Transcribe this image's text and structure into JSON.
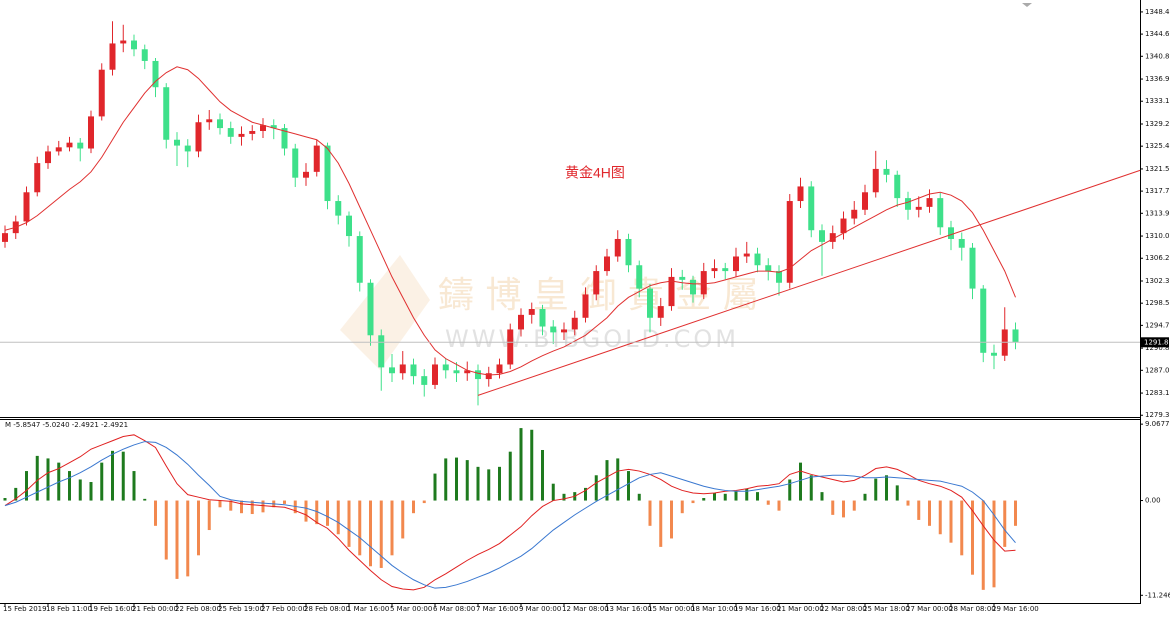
{
  "chart_data": {
    "type": "candlestick",
    "annotation": "黄金4H图",
    "watermark": {
      "title": "鑄 博 皇 御 貴 金 屬",
      "url": "WWW.BIBGOLD.COM"
    },
    "categories": [
      "15 Feb 2019",
      null,
      null,
      null,
      "18 Feb 11:00",
      null,
      null,
      null,
      "19 Feb 16:00",
      null,
      null,
      null,
      "21 Feb 00:00",
      null,
      null,
      null,
      "22 Feb 08:00",
      null,
      null,
      null,
      "25 Feb 19:00",
      null,
      null,
      null,
      "27 Feb 00:00",
      null,
      null,
      null,
      "28 Feb 08:00",
      null,
      null,
      null,
      "1 Mar 16:00",
      null,
      null,
      null,
      "5 Mar 00:00",
      null,
      null,
      null,
      "6 Mar 08:00",
      null,
      null,
      null,
      "7 Mar 16:00",
      null,
      null,
      null,
      "9 Mar 00:00",
      null,
      null,
      null,
      "12 Mar 08:00",
      null,
      null,
      null,
      "13 Mar 16:00",
      null,
      null,
      null,
      "15 Mar 00:00",
      null,
      null,
      null,
      "18 Mar 10:00",
      null,
      null,
      null,
      "19 Mar 16:00",
      null,
      null,
      null,
      "21 Mar 00:00",
      null,
      null,
      null,
      "22 Mar 08:00",
      null,
      null,
      null,
      "25 Mar 18:00",
      null,
      null,
      null,
      "27 Mar 00:00",
      null,
      null,
      null,
      "28 Mar 08:00",
      null,
      null,
      null,
      "29 Mar 16:00",
      null,
      null
    ],
    "open": [
      1309.0,
      1310.5,
      1312.5,
      1317.5,
      1322.5,
      1324.5,
      1325.2,
      1326.0,
      1325.0,
      1330.5,
      1338.5,
      1343.0,
      1343.5,
      1342.0,
      1340.0,
      1335.5,
      1326.5,
      1325.5,
      1324.5,
      1329.5,
      1330.0,
      1328.5,
      1327.0,
      1327.5,
      1328.0,
      1329.0,
      1328.5,
      1325.0,
      1320.0,
      1321.0,
      1325.5,
      1316.0,
      1313.5,
      1310.0,
      1302.0,
      1293.0,
      1287.5,
      1286.5,
      1288.0,
      1286.0,
      1284.5,
      1288.0,
      1287.0,
      1286.5,
      1287.0,
      1285.5,
      1286.5,
      1288.0,
      1294.0,
      1296.5,
      1297.5,
      1294.5,
      1293.5,
      1294.0,
      1296.0,
      1300.0,
      1304.0,
      1306.5,
      1309.5,
      1305.0,
      1301.0,
      1296.0,
      1298.0,
      1303.0,
      1302.5,
      1300.0,
      1304.0,
      1304.5,
      1304.0,
      1306.5,
      1307.0,
      1305.0,
      1304.0,
      1302.0,
      1316.0,
      1318.5,
      1311.0,
      1309.0,
      1310.5,
      1313.0,
      1314.5,
      1317.5,
      1321.5,
      1320.5,
      1316.5,
      1314.5,
      1315.0,
      1316.5,
      1311.5,
      1309.5,
      1308.0,
      1301.0,
      1290.0,
      1289.5,
      1294.0
    ],
    "high": [
      1311.8,
      1313.5,
      1318.5,
      1323.6,
      1325.5,
      1326.3,
      1327.0,
      1326.8,
      1331.5,
      1339.6,
      1346.8,
      1346.2,
      1344.5,
      1342.8,
      1340.5,
      1336.2,
      1327.8,
      1326.6,
      1330.8,
      1331.6,
      1331.0,
      1329.6,
      1328.8,
      1329.0,
      1330.2,
      1330.0,
      1329.2,
      1325.8,
      1322.5,
      1326.5,
      1326.0,
      1317.0,
      1314.2,
      1310.8,
      1302.6,
      1294.0,
      1289.8,
      1290.3,
      1289.0,
      1287.2,
      1289.2,
      1289.0,
      1288.4,
      1288.5,
      1288.0,
      1287.6,
      1289.0,
      1295.0,
      1297.6,
      1298.6,
      1298.2,
      1295.6,
      1295.2,
      1297.2,
      1301.2,
      1305.0,
      1307.8,
      1311.0,
      1310.4,
      1305.8,
      1301.8,
      1299.4,
      1304.5,
      1304.2,
      1303.2,
      1305.4,
      1306.0,
      1305.4,
      1308.0,
      1309.0,
      1308.0,
      1306.2,
      1305.0,
      1317.2,
      1320.0,
      1319.4,
      1312.0,
      1311.8,
      1314.2,
      1316.0,
      1318.8,
      1324.6,
      1323.0,
      1321.2,
      1317.6,
      1316.8,
      1318.0,
      1317.4,
      1312.6,
      1310.6,
      1308.8,
      1301.6,
      1291.4,
      1297.8,
      1295.2
    ],
    "low": [
      1308.0,
      1309.5,
      1311.8,
      1316.8,
      1321.5,
      1323.8,
      1324.5,
      1322.8,
      1324.2,
      1329.8,
      1337.5,
      1341.5,
      1340.8,
      1338.6,
      1333.8,
      1325.0,
      1322.0,
      1321.8,
      1323.5,
      1328.2,
      1327.4,
      1325.8,
      1325.5,
      1326.4,
      1326.8,
      1326.6,
      1323.8,
      1318.4,
      1318.6,
      1320.2,
      1314.6,
      1312.0,
      1308.2,
      1300.5,
      1291.2,
      1283.5,
      1285.0,
      1285.4,
      1284.6,
      1282.5,
      1283.8,
      1285.6,
      1285.0,
      1285.2,
      1281.0,
      1284.2,
      1285.6,
      1287.2,
      1292.8,
      1295.0,
      1293.0,
      1291.5,
      1292.2,
      1293.0,
      1295.2,
      1299.0,
      1303.2,
      1305.6,
      1303.8,
      1299.5,
      1293.5,
      1294.6,
      1297.2,
      1300.8,
      1298.6,
      1299.2,
      1302.8,
      1302.6,
      1303.0,
      1305.4,
      1303.8,
      1302.4,
      1299.8,
      1301.0,
      1314.8,
      1309.8,
      1303.2,
      1307.8,
      1309.4,
      1312.0,
      1313.6,
      1316.6,
      1319.2,
      1315.0,
      1312.8,
      1313.2,
      1314.0,
      1310.2,
      1307.6,
      1305.8,
      1299.2,
      1288.4,
      1287.2,
      1288.6,
      1290.6
    ],
    "close": [
      1310.5,
      1312.5,
      1317.5,
      1322.5,
      1324.5,
      1325.2,
      1326.0,
      1325.0,
      1330.5,
      1338.5,
      1343.0,
      1343.5,
      1342.0,
      1340.0,
      1335.5,
      1326.5,
      1325.5,
      1324.5,
      1329.5,
      1330.0,
      1328.5,
      1327.0,
      1327.5,
      1328.0,
      1329.0,
      1328.5,
      1325.0,
      1320.0,
      1321.0,
      1325.5,
      1316.0,
      1313.5,
      1310.0,
      1302.0,
      1293.0,
      1287.5,
      1286.5,
      1288.0,
      1286.0,
      1284.5,
      1288.0,
      1287.0,
      1286.5,
      1287.0,
      1285.5,
      1286.5,
      1288.0,
      1294.0,
      1296.5,
      1297.5,
      1294.5,
      1293.5,
      1294.0,
      1296.0,
      1300.0,
      1304.0,
      1306.5,
      1309.5,
      1305.0,
      1301.0,
      1296.0,
      1298.0,
      1303.0,
      1302.5,
      1300.0,
      1304.0,
      1304.5,
      1304.0,
      1306.5,
      1307.0,
      1305.0,
      1304.0,
      1302.0,
      1316.0,
      1318.5,
      1311.0,
      1309.0,
      1310.5,
      1313.0,
      1314.5,
      1317.5,
      1321.5,
      1320.5,
      1316.5,
      1314.5,
      1315.0,
      1316.5,
      1311.5,
      1309.5,
      1308.0,
      1301.0,
      1290.0,
      1289.5,
      1294.0,
      1291.8
    ],
    "up_color": "#e0262b",
    "down_color": "#3ee08a",
    "ma": {
      "color": "#e03030",
      "values": [
        1311.0,
        1311.5,
        1312.3,
        1313.5,
        1315,
        1316.5,
        1318,
        1319.3,
        1321,
        1323.5,
        1326.5,
        1329.5,
        1332,
        1334.5,
        1336.5,
        1338,
        1339,
        1338.5,
        1337,
        1335,
        1333,
        1331.5,
        1330.5,
        1329.5,
        1329,
        1328.5,
        1328,
        1327.5,
        1327,
        1326.5,
        1325,
        1322.5,
        1319,
        1315,
        1311,
        1307,
        1303,
        1299.5,
        1296,
        1293,
        1290.5,
        1289,
        1288,
        1287,
        1286.5,
        1286.2,
        1286.3,
        1286.8,
        1287.6,
        1288.6,
        1289.5,
        1290.3,
        1291,
        1292,
        1293,
        1294.5,
        1296,
        1298,
        1299.5,
        1300.5,
        1301.5,
        1302,
        1302.3,
        1302,
        1301.8,
        1301.8,
        1302,
        1302.5,
        1303,
        1303.5,
        1304,
        1304,
        1303.8,
        1304.5,
        1306,
        1307.5,
        1308.5,
        1309.5,
        1310.5,
        1311.5,
        1312.5,
        1313.5,
        1314.5,
        1315.3,
        1315.8,
        1316.5,
        1317.2,
        1317.5,
        1317,
        1316,
        1314,
        1311,
        1307.5,
        1304,
        1299.5
      ]
    },
    "trendline": {
      "color": "#e03030",
      "bars": [
        44,
        94
      ],
      "prices": [
        1282.7,
        1314.0
      ]
    },
    "last_price": {
      "value": 1291.8,
      "label": "1291.80"
    },
    "ylim": [
      1279.0,
      1350.1
    ],
    "yticks": [
      {
        "value": 1348.4,
        "label": "1348.40"
      },
      {
        "value": 1344.6,
        "label": "1344.60"
      },
      {
        "value": 1340.8,
        "label": "1340.80"
      },
      {
        "value": 1336.9,
        "label": "1336.90"
      },
      {
        "value": 1333.1,
        "label": "1333.10"
      },
      {
        "value": 1329.2,
        "label": "1329.20"
      },
      {
        "value": 1325.4,
        "label": "1325.40"
      },
      {
        "value": 1321.5,
        "label": "1321.50"
      },
      {
        "value": 1317.7,
        "label": "1317.70"
      },
      {
        "value": 1313.9,
        "label": "1313.90"
      },
      {
        "value": 1310,
        "label": "1310.00"
      },
      {
        "value": 1306.2,
        "label": "1306.20"
      },
      {
        "value": 1302.3,
        "label": "1302.30"
      },
      {
        "value": 1298.5,
        "label": "1298.50"
      },
      {
        "value": 1294.7,
        "label": "1294.70"
      },
      {
        "value": 1290.8,
        "label": "1290.80"
      },
      {
        "value": 1287,
        "label": "1287.00"
      },
      {
        "value": 1283.1,
        "label": "1283.10"
      },
      {
        "value": 1279.3,
        "label": "1279.30"
      }
    ],
    "indicator": {
      "type": "macd",
      "label": "M -5.8547 -5.0240 -2.4921 -2.4921",
      "histogram": {
        "up_color": "#1e7a1e",
        "down_color": "#f2884e",
        "values": [
          0.3,
          1.5,
          3.5,
          5.3,
          5.0,
          4.5,
          3.5,
          2.5,
          2.2,
          4.5,
          5.9,
          5.8,
          3.5,
          0.2,
          -3.0,
          -7.0,
          -9.3,
          -9.0,
          -6.5,
          -3.5,
          -0.8,
          -1.2,
          -1.5,
          -1.6,
          -1.4,
          -0.8,
          -0.4,
          -1.5,
          -2.5,
          -2.8,
          -3.0,
          -4.0,
          -5.5,
          -6.5,
          -7.8,
          -8.0,
          -6.5,
          -4.5,
          -1.5,
          -0.3,
          3.2,
          5.0,
          5.1,
          4.8,
          4.0,
          3.7,
          4.0,
          5.8,
          8.6,
          8.4,
          6.0,
          2.0,
          0.8,
          1.0,
          1.5,
          3.0,
          4.8,
          5.0,
          3.5,
          0.8,
          -3.0,
          -5.5,
          -4.5,
          -1.5,
          -0.3,
          0.3,
          0.9,
          0.8,
          1.1,
          1.4,
          1.0,
          -0.5,
          -1.2,
          2.5,
          4.5,
          3.0,
          1.0,
          -1.7,
          -2.0,
          -1.2,
          0.8,
          2.6,
          3.0,
          1.8,
          -0.6,
          -2.3,
          -3.0,
          -4.0,
          -5.0,
          -6.5,
          -8.8,
          -10.6,
          -10.3,
          -5.5,
          -3.0
        ]
      },
      "series": [
        {
          "color": "#e02020",
          "values": [
            -0.6,
            0.2,
            1.2,
            2.4,
            3.3,
            3.8,
            4.5,
            5.2,
            6.1,
            6.6,
            7.1,
            7.6,
            7.8,
            7.1,
            6.3,
            4.1,
            2.0,
            0.7,
            0.4,
            0.1,
            0,
            -0.1,
            -0.4,
            -0.5,
            -0.6,
            -0.7,
            -0.8,
            -1.2,
            -1.7,
            -2.6,
            -3.3,
            -4.5,
            -5.9,
            -7.1,
            -8.3,
            -9.4,
            -10.2,
            -10.5,
            -10.6,
            -10.3,
            -9.4,
            -8.7,
            -7.9,
            -7.1,
            -6.4,
            -5.8,
            -5.1,
            -4.1,
            -3.1,
            -1.8,
            -0.7,
            0,
            0.2,
            0.5,
            1.2,
            2.1,
            2.8,
            3.5,
            3.7,
            3.5,
            3.1,
            2.5,
            1.7,
            1.2,
            0.9,
            0.8,
            0.9,
            1.1,
            1.2,
            1.4,
            1.7,
            1.8,
            2.0,
            3.1,
            3.5,
            3.1,
            2.8,
            2.5,
            2.2,
            2.4,
            3.0,
            3.8,
            4.0,
            3.7,
            3.1,
            2.4,
            2.0,
            1.7,
            1.2,
            0.4,
            -1.2,
            -3.0,
            -4.7,
            -6.0,
            -5.9
          ]
        },
        {
          "color": "#3a78d0",
          "values": [
            -0.6,
            -0.2,
            0.4,
            1.0,
            1.6,
            2.2,
            2.7,
            3.3,
            4.0,
            4.8,
            5.5,
            6.1,
            6.6,
            7.0,
            6.9,
            6.3,
            5.4,
            4.3,
            3.0,
            1.8,
            0.5,
            0.1,
            -0.1,
            -0.2,
            -0.3,
            -0.4,
            -0.5,
            -0.7,
            -0.9,
            -1.3,
            -1.9,
            -2.6,
            -3.5,
            -4.4,
            -5.5,
            -6.6,
            -7.7,
            -8.6,
            -9.4,
            -10.0,
            -10.4,
            -10.3,
            -10.0,
            -9.6,
            -9.1,
            -8.6,
            -8.0,
            -7.3,
            -6.6,
            -5.7,
            -4.6,
            -3.5,
            -2.6,
            -1.7,
            -0.9,
            -0.1,
            0.6,
            1.3,
            2.0,
            2.7,
            3.1,
            3.3,
            2.9,
            2.5,
            2.1,
            1.7,
            1.4,
            1.2,
            1.1,
            1.1,
            1.3,
            1.5,
            1.7,
            2.0,
            2.4,
            2.8,
            2.9,
            3.0,
            3.0,
            2.9,
            2.7,
            2.7,
            2.8,
            2.7,
            2.6,
            2.5,
            2.4,
            2.3,
            2.0,
            1.7,
            1.0,
            0.0,
            -1.7,
            -3.5,
            -5.0
          ]
        }
      ],
      "ylim": [
        -12.16,
        9.56
      ],
      "yticks": [
        9.0677,
        {
          "value": 0,
          "label": "0.00"
        },
        -11.246
      ]
    }
  }
}
